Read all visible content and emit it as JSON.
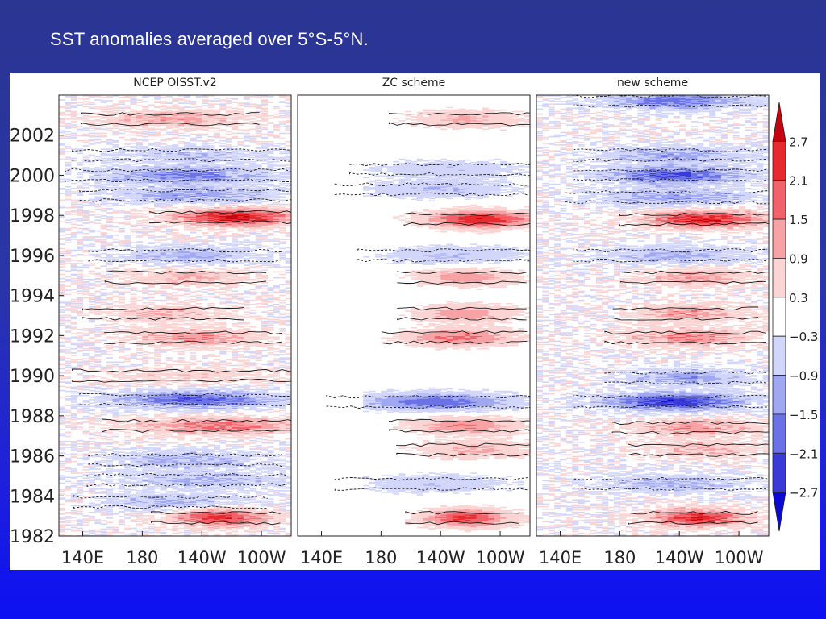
{
  "slide": {
    "title": "SST anomalies averaged over 5°S-5°N."
  },
  "chart_data": {
    "type": "heatmap",
    "title": "SST anomalies averaged over 5°S-5°N.",
    "panels": [
      {
        "title": "NCEP OISST.v2"
      },
      {
        "title": "ZC scheme"
      },
      {
        "title": "new scheme"
      }
    ],
    "x_ticks": [
      "140E",
      "180",
      "140W",
      "100W"
    ],
    "x_tick_lon": [
      140,
      180,
      220,
      260
    ],
    "x_range_lon": [
      124,
      280
    ],
    "y_ticks": [
      "1982",
      "1984",
      "1986",
      "1988",
      "1990",
      "1992",
      "1994",
      "1996",
      "1998",
      "2000",
      "2002"
    ],
    "y_range": [
      1982,
      2004
    ],
    "colorbar": {
      "levels": [
        2.7,
        2.1,
        1.5,
        0.9,
        0.3,
        -0.3,
        -0.9,
        -1.5,
        -2.1,
        -2.7
      ],
      "labels": [
        "2.7",
        "2.1",
        "1.5",
        "0.9",
        "0.3",
        "−0.3",
        "−0.9",
        "−1.5",
        "−2.1",
        "−2.7"
      ],
      "colors": [
        "#c4050f",
        "#e72a2f",
        "#f2626a",
        "#f7a2a4",
        "#fbd4d4",
        "#ffffff",
        "#d2d6fa",
        "#a0a8f2",
        "#6a72e6",
        "#3a3ad8",
        "#0c0ad0"
      ]
    },
    "anomaly_events": {
      "NCEP OISST.v2": [
        {
          "year": 1982.9,
          "lon_center": 230,
          "lon_width": 40,
          "peak": 2.4
        },
        {
          "year": 1983.7,
          "lon_center": 200,
          "lon_width": 60,
          "peak": -0.9
        },
        {
          "year": 1984.8,
          "lon_center": 220,
          "lon_width": 70,
          "peak": -1.0
        },
        {
          "year": 1985.8,
          "lon_center": 210,
          "lon_width": 60,
          "peak": -1.1
        },
        {
          "year": 1987.5,
          "lon_center": 230,
          "lon_width": 70,
          "peak": 1.6
        },
        {
          "year": 1988.8,
          "lon_center": 215,
          "lon_width": 70,
          "peak": -2.0
        },
        {
          "year": 1990.0,
          "lon_center": 210,
          "lon_width": 70,
          "peak": 0.6
        },
        {
          "year": 1991.9,
          "lon_center": 215,
          "lon_width": 55,
          "peak": 1.4
        },
        {
          "year": 1993.1,
          "lon_center": 195,
          "lon_width": 50,
          "peak": 0.9
        },
        {
          "year": 1994.9,
          "lon_center": 210,
          "lon_width": 50,
          "peak": 0.9
        },
        {
          "year": 1996.0,
          "lon_center": 210,
          "lon_width": 60,
          "peak": -1.0
        },
        {
          "year": 1997.9,
          "lon_center": 240,
          "lon_width": 50,
          "peak": 2.8
        },
        {
          "year": 1999.0,
          "lon_center": 215,
          "lon_width": 70,
          "peak": -1.2
        },
        {
          "year": 2000.0,
          "lon_center": 205,
          "lon_width": 70,
          "peak": -1.6
        },
        {
          "year": 2001.0,
          "lon_center": 210,
          "lon_width": 70,
          "peak": -0.7
        },
        {
          "year": 2002.8,
          "lon_center": 200,
          "lon_width": 55,
          "peak": 1.2
        }
      ],
      "ZC scheme": [
        {
          "year": 1982.9,
          "lon_center": 235,
          "lon_width": 35,
          "peak": 2.3
        },
        {
          "year": 1984.6,
          "lon_center": 215,
          "lon_width": 60,
          "peak": -0.8
        },
        {
          "year": 1986.3,
          "lon_center": 240,
          "lon_width": 45,
          "peak": 1.0
        },
        {
          "year": 1987.5,
          "lon_center": 235,
          "lon_width": 45,
          "peak": 1.5
        },
        {
          "year": 1988.7,
          "lon_center": 215,
          "lon_width": 65,
          "peak": -1.9
        },
        {
          "year": 1991.9,
          "lon_center": 230,
          "lon_width": 45,
          "peak": 1.7
        },
        {
          "year": 1993.1,
          "lon_center": 235,
          "lon_width": 40,
          "peak": 1.3
        },
        {
          "year": 1994.9,
          "lon_center": 235,
          "lon_width": 40,
          "peak": 1.3
        },
        {
          "year": 1996.0,
          "lon_center": 225,
          "lon_width": 55,
          "peak": -0.9
        },
        {
          "year": 1997.8,
          "lon_center": 245,
          "lon_width": 45,
          "peak": 2.6
        },
        {
          "year": 1999.3,
          "lon_center": 215,
          "lon_width": 60,
          "peak": -0.9
        },
        {
          "year": 2000.3,
          "lon_center": 225,
          "lon_width": 60,
          "peak": -0.8
        },
        {
          "year": 2002.8,
          "lon_center": 235,
          "lon_width": 45,
          "peak": 1.0
        }
      ],
      "new scheme": [
        {
          "year": 1982.9,
          "lon_center": 230,
          "lon_width": 40,
          "peak": 2.5
        },
        {
          "year": 1984.6,
          "lon_center": 215,
          "lon_width": 60,
          "peak": -1.0
        },
        {
          "year": 1986.3,
          "lon_center": 235,
          "lon_width": 45,
          "peak": 1.0
        },
        {
          "year": 1987.4,
          "lon_center": 230,
          "lon_width": 50,
          "peak": 1.4
        },
        {
          "year": 1988.7,
          "lon_center": 215,
          "lon_width": 60,
          "peak": -2.5
        },
        {
          "year": 1989.9,
          "lon_center": 225,
          "lon_width": 50,
          "peak": -1.2
        },
        {
          "year": 1991.9,
          "lon_center": 225,
          "lon_width": 50,
          "peak": 1.5
        },
        {
          "year": 1993.1,
          "lon_center": 225,
          "lon_width": 45,
          "peak": 1.3
        },
        {
          "year": 1994.9,
          "lon_center": 230,
          "lon_width": 45,
          "peak": 1.2
        },
        {
          "year": 1996.0,
          "lon_center": 215,
          "lon_width": 60,
          "peak": -1.0
        },
        {
          "year": 1997.8,
          "lon_center": 235,
          "lon_width": 50,
          "peak": 2.6
        },
        {
          "year": 1998.9,
          "lon_center": 215,
          "lon_width": 65,
          "peak": -1.3
        },
        {
          "year": 2000.0,
          "lon_center": 215,
          "lon_width": 60,
          "peak": -2.1
        },
        {
          "year": 2001.0,
          "lon_center": 215,
          "lon_width": 60,
          "peak": -1.2
        },
        {
          "year": 2003.7,
          "lon_center": 215,
          "lon_width": 60,
          "peak": -1.8
        }
      ]
    }
  }
}
